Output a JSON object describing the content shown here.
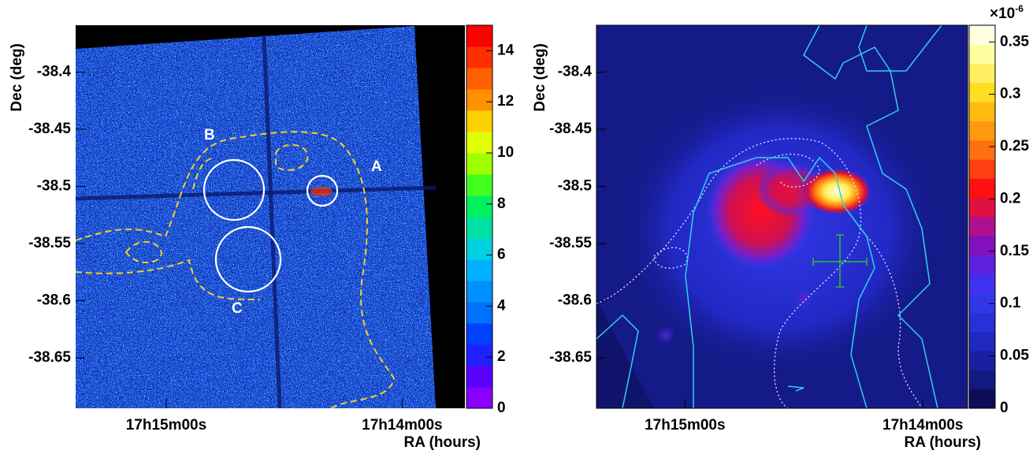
{
  "chart_data": [
    {
      "type": "image",
      "ylabel": "Dec (deg)",
      "xlabel": "RA (hours)",
      "xlim": [
        17.2564,
        17.2289
      ],
      "xticks": [
        {
          "value": 17.25,
          "label": "17h15m00s"
        },
        {
          "value": 17.233333,
          "label": "17h14m00s"
        }
      ],
      "ylim": [
        -38.694,
        -38.359
      ],
      "yticks": [
        -38.4,
        -38.45,
        -38.5,
        -38.55,
        -38.6,
        -38.65
      ],
      "zlim": [
        0,
        15
      ],
      "zticks": [
        0,
        2,
        4,
        6,
        8,
        10,
        12,
        14
      ],
      "colorscale": [
        "#8a00ff",
        "#5a00ff",
        "#2020ff",
        "#0040ff",
        "#0070ff",
        "#0090ff",
        "#00b0ff",
        "#00d0e0",
        "#00e0a0",
        "#00f060",
        "#40ff20",
        "#a0ff00",
        "#e0ff00",
        "#ffd000",
        "#ff9000",
        "#ff6000",
        "#ff3000",
        "#ff0000"
      ],
      "annotations": [
        "A",
        "B",
        "C"
      ]
    },
    {
      "type": "image",
      "ylabel": "Dec (deg)",
      "xlabel": "RA (hours)",
      "xlim": [
        17.2562,
        17.2302
      ],
      "xticks": [
        {
          "value": 17.25,
          "label": "17h15m00s"
        },
        {
          "value": 17.233333,
          "label": "17h14m00s"
        }
      ],
      "ylim": [
        -38.694,
        -38.359
      ],
      "yticks": [
        -38.4,
        -38.45,
        -38.5,
        -38.55,
        -38.6,
        -38.65
      ],
      "zlim": [
        0,
        0.366
      ],
      "zticks": [
        0,
        0.05,
        0.1,
        0.15,
        0.2,
        0.25,
        0.3,
        0.35
      ],
      "colorbar_exponent": {
        "base": "×10",
        "power": "-6"
      },
      "colorscale": [
        "#0c0c58",
        "#121a80",
        "#1820a0",
        "#2028c0",
        "#2830d8",
        "#3038e8",
        "#4030f0",
        "#6020e0",
        "#8010c0",
        "#b01090",
        "#e01040",
        "#ff1010",
        "#ff4010",
        "#ff7010",
        "#ff9910",
        "#ffbb10",
        "#ffdd20",
        "#ffee60",
        "#ffffa0",
        "#ffffe0"
      ]
    }
  ]
}
